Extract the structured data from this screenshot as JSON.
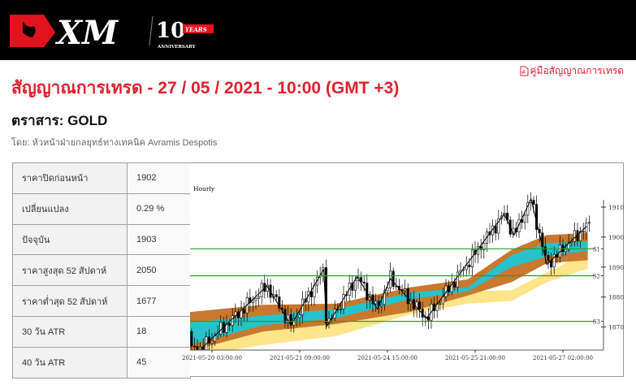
{
  "header": {
    "logo_text": "XM",
    "logo_badge": "10",
    "logo_years": "YEARS",
    "logo_anniversary": "ANNIVERSARY"
  },
  "title": "สัญญาณการเทรด - 27 / 05 / 2021 - 10:00 (GMT +3)",
  "guide_link": "คู่มือสัญญาณการเทรด",
  "instrument": "ตราสาร: GOLD",
  "author": "โดย: หัวหน้าฝ่ายกลยุทธ์ทางเทคนิค Avramis Despotis",
  "table": [
    {
      "label": "ราคาปิดก่อนหน้า",
      "value": "1902"
    },
    {
      "label": "เปลี่ยนแปลง",
      "value": "0.29 %"
    },
    {
      "label": "ปัจจุบัน",
      "value": "1903"
    },
    {
      "label": "ราคาสูงสุด 52 สัปดาห์",
      "value": "2050"
    },
    {
      "label": "ราคาต่ำสุด 52 สัปดาห์",
      "value": "1677"
    },
    {
      "label": "30 วัน ATR",
      "value": "18"
    },
    {
      "label": "40 วัน ATR",
      "value": "45"
    }
  ],
  "colors": {
    "brand_red": "#e0202e",
    "band_brown": "#c8792e",
    "band_cyan": "#27c2cb",
    "band_yellow": "#fde58a",
    "level_green": "#2e9a2e"
  },
  "chart_data": {
    "type": "candlestick",
    "title": "Hourly",
    "ylim": [
      1858,
      1912.5
    ],
    "xlim": [
      0,
      141
    ],
    "yticks": [
      1870,
      1880,
      1890,
      1900,
      1910
    ],
    "xticks": [
      {
        "bar": 7.5,
        "label": "2021-05-20 03:00:00"
      },
      {
        "bar": 37.5,
        "label": "2021-05-21 09:00:00"
      },
      {
        "bar": 67.5,
        "label": "2021-05-24 15:00:00"
      },
      {
        "bar": 97.5,
        "label": "2021-05-25 21:00:00"
      },
      {
        "bar": 127.5,
        "label": "2021-05-27 02:00:00"
      }
    ],
    "levels": [
      {
        "name": "S1",
        "price": 1896.1
      },
      {
        "name": "S2",
        "price": 1887.1
      },
      {
        "name": "S3",
        "price": 1871.9
      }
    ],
    "zigzag": [
      [
        3.5,
        1862.5
      ],
      [
        26.3,
        1883.7
      ],
      [
        34.5,
        1870.6
      ],
      [
        45.7,
        1889.2
      ],
      [
        46.7,
        1870.2
      ],
      [
        57.1,
        1886.8
      ],
      [
        64.1,
        1876
      ],
      [
        68.5,
        1886.1
      ],
      [
        80.9,
        1872.9
      ],
      [
        107.4,
        1907.7
      ],
      [
        110.8,
        1900.7
      ],
      [
        116.6,
        1912.7
      ],
      [
        122,
        1890.9
      ],
      [
        135.6,
        1903.6
      ]
    ],
    "bands": {
      "x": [
        0,
        25,
        50,
        75,
        95,
        110,
        122,
        136
      ],
      "brown_top": [
        1875,
        1877.4,
        1877.8,
        1883.2,
        1885.9,
        1895.8,
        1900.7,
        1901.4
      ],
      "brown_bottom": [
        1862,
        1868.5,
        1871,
        1875,
        1880.5,
        1885,
        1891.3,
        1892.3
      ],
      "cyan_top": [
        1871.5,
        1873.8,
        1876,
        1881.4,
        1883.2,
        1894,
        1898,
        1898.5
      ],
      "cyan_bottom": [
        1864,
        1870.6,
        1872.9,
        1879.2,
        1881.9,
        1890,
        1893.5,
        1895.5
      ],
      "yellow_top": [
        1867,
        1870,
        1871,
        1879.6,
        1881.9,
        1882.3,
        1888.2,
        1895
      ],
      "yellow_bottom": [
        1860,
        1864,
        1867,
        1874.2,
        1877.8,
        1878.7,
        1885,
        1889.5
      ]
    }
  }
}
